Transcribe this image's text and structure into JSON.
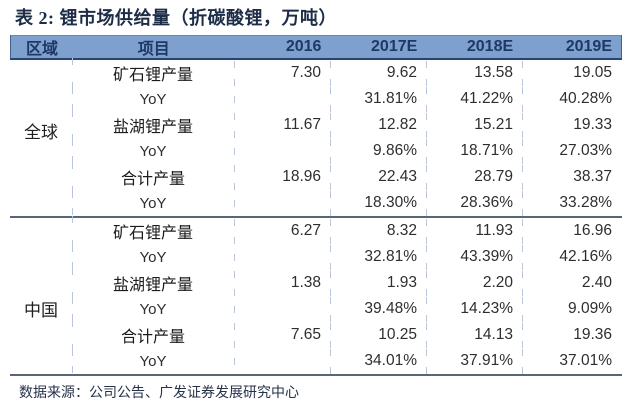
{
  "title": "表 2: 锂市场供给量（折碳酸锂，万吨）",
  "footer": "数据来源：公司公告、广发证券发展研究中心",
  "table": {
    "headers": [
      "区域",
      "项目",
      "2016",
      "2017E",
      "2018E",
      "2019E"
    ],
    "sections": [
      {
        "region": "全球",
        "rows": [
          {
            "item": "矿石锂产量",
            "values": [
              "7.30",
              "9.62",
              "13.58",
              "19.05"
            ]
          },
          {
            "item": "YoY",
            "values": [
              "",
              "31.81%",
              "41.22%",
              "40.28%"
            ]
          },
          {
            "item": "盐湖锂产量",
            "values": [
              "11.67",
              "12.82",
              "15.21",
              "19.33"
            ]
          },
          {
            "item": "YoY",
            "values": [
              "",
              "9.86%",
              "18.71%",
              "27.03%"
            ]
          },
          {
            "item": "合计产量",
            "values": [
              "18.96",
              "22.43",
              "28.79",
              "38.37"
            ]
          },
          {
            "item": "YoY",
            "values": [
              "",
              "18.30%",
              "28.36%",
              "33.28%"
            ]
          }
        ]
      },
      {
        "region": "中国",
        "rows": [
          {
            "item": "矿石锂产量",
            "values": [
              "6.27",
              "8.32",
              "11.93",
              "16.96"
            ]
          },
          {
            "item": "YoY",
            "values": [
              "",
              "32.81%",
              "43.39%",
              "42.16%"
            ]
          },
          {
            "item": "盐湖锂产量",
            "values": [
              "1.38",
              "1.93",
              "2.20",
              "2.40"
            ]
          },
          {
            "item": "YoY",
            "values": [
              "",
              "39.48%",
              "14.23%",
              "9.09%"
            ]
          },
          {
            "item": "合计产量",
            "values": [
              "7.65",
              "10.25",
              "14.13",
              "19.36"
            ]
          },
          {
            "item": "YoY",
            "values": [
              "",
              "34.01%",
              "37.91%",
              "37.01%"
            ]
          }
        ]
      }
    ]
  },
  "colors": {
    "header_bg": "#7EA0CE",
    "header_text": "#1F3864",
    "title_text": "#1D2C47",
    "body_text": "#2E2E2E",
    "rule": "#5A6678",
    "tick": "#B7C6DA",
    "footer_text": "#26324A"
  }
}
